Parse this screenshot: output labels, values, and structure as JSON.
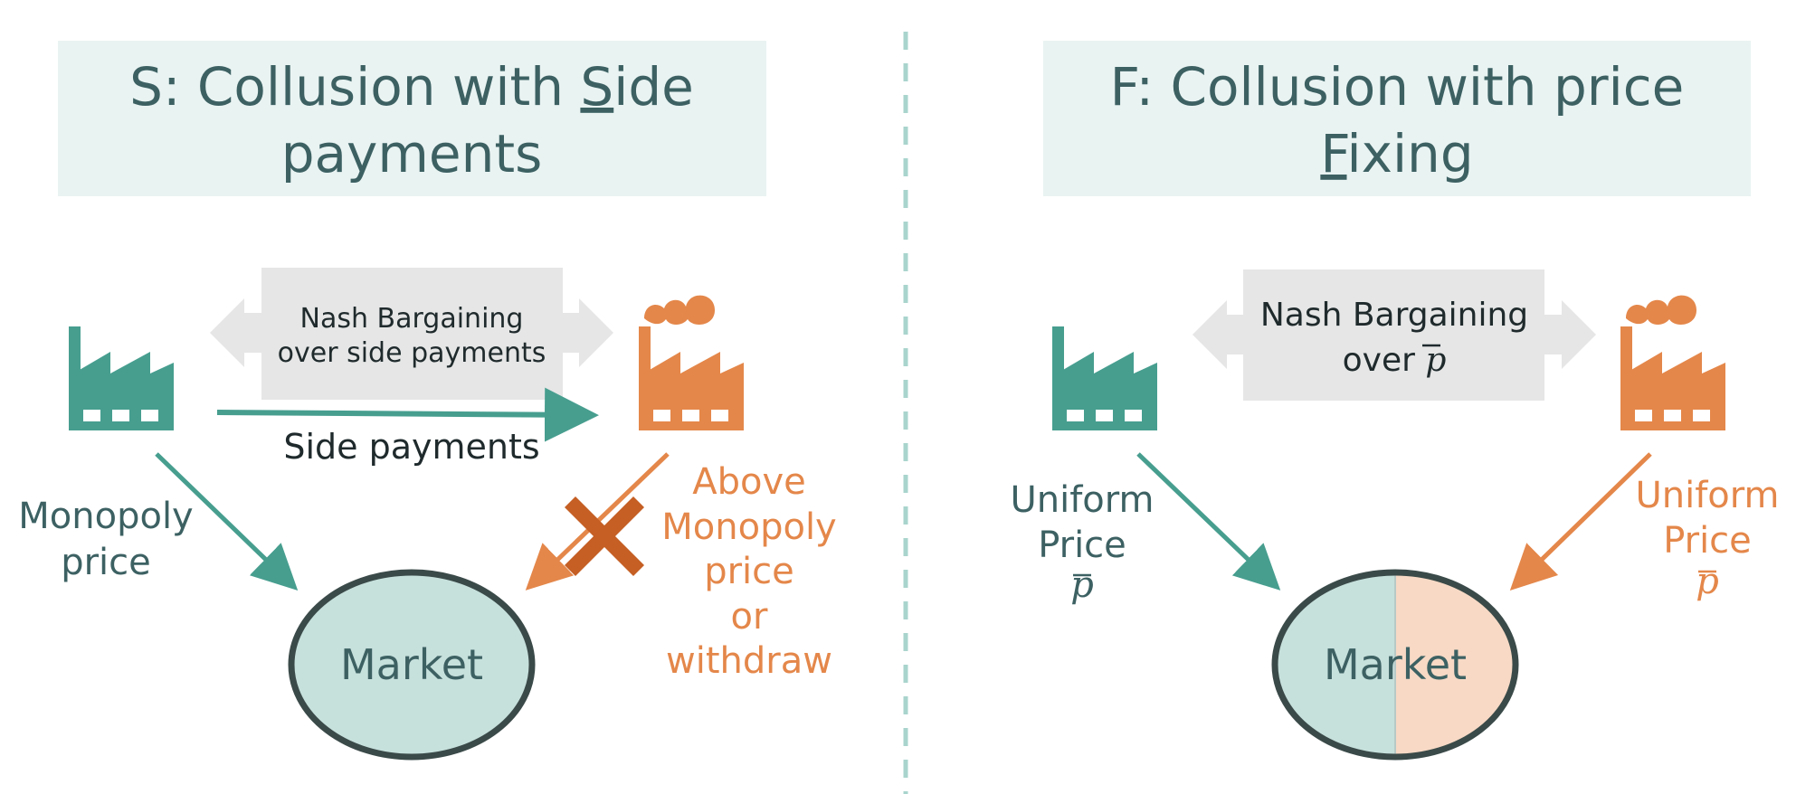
{
  "colors": {
    "teal": "#479e8f",
    "teal_text": "#3d6163",
    "orange": "#e4874a",
    "cross": "#c55f24",
    "title_bg": "#e9f3f2",
    "bargain_bg": "#e6e6e6",
    "market_teal": "#c6e0dc",
    "market_orange": "#f7d9c5",
    "market_outline": "#3a4a48",
    "divider": "#a9d4cd"
  },
  "left": {
    "title_line1_pre": "S: Collusion with ",
    "title_line1_u": "S",
    "title_line1_post": "ide",
    "title_line2": "payments",
    "bargain_line1": "Nash Bargaining",
    "bargain_line2": "over side payments",
    "side_payments": "Side payments",
    "teal_label_line1": "Monopoly",
    "teal_label_line2": "price",
    "orange_label_line1": "Above",
    "orange_label_line2": "Monopoly",
    "orange_label_line3": "price",
    "orange_label_line4": "or",
    "orange_label_line5": "withdraw",
    "market": "Market"
  },
  "right": {
    "title_line1": "F: Collusion with price",
    "title_line2_u": "F",
    "title_line2_post": "ixing",
    "bargain_line1": "Nash Bargaining",
    "bargain_line2": "over",
    "bargain_symbol": "p",
    "teal_label_line1": "Uniform",
    "teal_label_line2": "Price",
    "teal_symbol": "p",
    "orange_label_line1": "Uniform",
    "orange_label_line2": "Price",
    "orange_symbol": "p",
    "market": "Market"
  },
  "icons": [
    "factory-icon-teal",
    "factory-icon-orange",
    "cross-icon",
    "double-arrow-icon"
  ]
}
